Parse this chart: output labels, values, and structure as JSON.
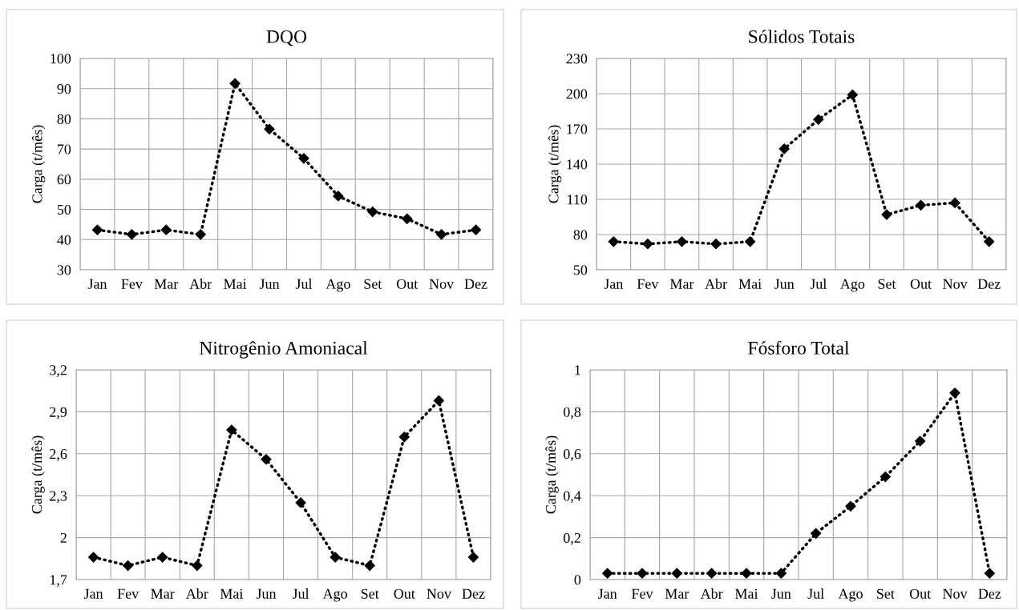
{
  "chart_data": [
    {
      "type": "line",
      "title": "DQO",
      "ylabel": "Carga (t/mês)",
      "categories": [
        "Jan",
        "Fev",
        "Mar",
        "Abr",
        "Mai",
        "Jun",
        "Jul",
        "Ago",
        "Set",
        "Out",
        "Nov",
        "Dez"
      ],
      "series": [
        {
          "color": "#000000",
          "values": [
            43.2,
            41.7,
            43.2,
            41.7,
            91.7,
            76.6,
            66.9,
            54.4,
            49.2,
            46.9,
            41.7,
            43.2
          ]
        }
      ],
      "ylim": [
        30,
        100
      ],
      "yticks": [
        30,
        40,
        50,
        60,
        70,
        80,
        90,
        100
      ],
      "grid": true,
      "marker": "diamond",
      "line_style": "dotted"
    },
    {
      "type": "line",
      "title": "Sólidos Totais",
      "ylabel": "Carga (t/mês)",
      "categories": [
        "Jan",
        "Fev",
        "Mar",
        "Abr",
        "Mai",
        "Jun",
        "Jul",
        "Ago",
        "Set",
        "Out",
        "Nov",
        "Dez"
      ],
      "series": [
        {
          "color": "#000000",
          "values": [
            74,
            72,
            74,
            72,
            74,
            153,
            178,
            199,
            97,
            105,
            107,
            74
          ]
        }
      ],
      "ylim": [
        50,
        230
      ],
      "yticks": [
        50,
        80,
        110,
        140,
        170,
        200,
        230
      ],
      "grid": true,
      "marker": "diamond",
      "line_style": "dotted"
    },
    {
      "type": "line",
      "title": "Nitrogênio Amoniacal",
      "ylabel": "Carga (t/mês)",
      "categories": [
        "Jan",
        "Fev",
        "Mar",
        "Abr",
        "Mai",
        "Jun",
        "Jul",
        "Ago",
        "Set",
        "Out",
        "Nov",
        "Dez"
      ],
      "series": [
        {
          "color": "#000000",
          "values": [
            1.86,
            1.8,
            1.86,
            1.8,
            2.77,
            2.56,
            2.25,
            1.86,
            1.8,
            2.72,
            2.98,
            1.86
          ]
        }
      ],
      "ylim": [
        1.7,
        3.2
      ],
      "yticks": [
        {
          "value": 1.7,
          "label": "1,7"
        },
        2,
        {
          "value": 2.3,
          "label": "2,3"
        },
        {
          "value": 2.6,
          "label": "2,6"
        },
        {
          "value": 2.9,
          "label": "2,9"
        },
        {
          "value": 3.2,
          "label": "3,2"
        }
      ],
      "grid": true,
      "marker": "diamond",
      "line_style": "dotted"
    },
    {
      "type": "line",
      "title": "Fósforo Total",
      "ylabel": "Carga (t/mês)",
      "categories": [
        "Jan",
        "Fev",
        "Mar",
        "Abr",
        "Mai",
        "Jun",
        "Jul",
        "Ago",
        "Set",
        "Out",
        "Nov",
        "Dez"
      ],
      "series": [
        {
          "color": "#000000",
          "values": [
            0.03,
            0.03,
            0.03,
            0.03,
            0.03,
            0.03,
            0.22,
            0.35,
            0.49,
            0.66,
            0.89,
            0.03
          ]
        }
      ],
      "ylim": [
        0,
        1
      ],
      "yticks": [
        0,
        {
          "value": 0.2,
          "label": "0,2"
        },
        {
          "value": 0.4,
          "label": "0,4"
        },
        {
          "value": 0.6,
          "label": "0,6"
        },
        {
          "value": 0.8,
          "label": "0,8"
        },
        1
      ],
      "grid": true,
      "marker": "diamond",
      "line_style": "dotted"
    }
  ]
}
